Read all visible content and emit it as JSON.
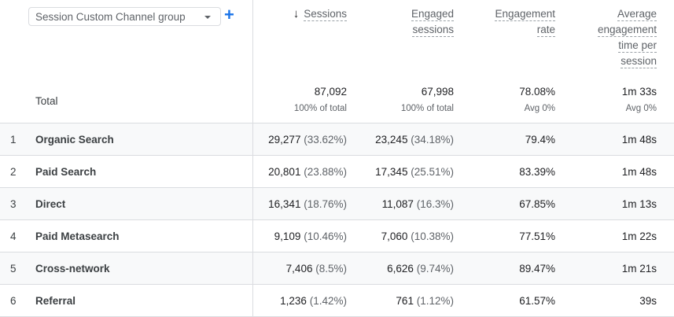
{
  "dimension": {
    "label": "Session Custom Channel group",
    "add_icon": "plus-icon"
  },
  "headers": [
    {
      "lines": [
        "Sessions"
      ],
      "sorted": "descending"
    },
    {
      "lines": [
        "Engaged",
        "sessions"
      ]
    },
    {
      "lines": [
        "Engagement",
        "rate"
      ]
    },
    {
      "lines": [
        "Average",
        "engagement",
        "time per",
        "session"
      ]
    }
  ],
  "total": {
    "label": "Total",
    "values": [
      "87,092",
      "67,998",
      "78.08%",
      "1m 33s"
    ],
    "subs": [
      "100% of total",
      "100% of total",
      "Avg 0%",
      "Avg 0%"
    ]
  },
  "rows": [
    {
      "idx": "1",
      "name": "Organic Search",
      "sessions": "29,277",
      "sessions_pct": "(33.62%)",
      "engaged": "23,245",
      "engaged_pct": "(34.18%)",
      "rate": "79.4%",
      "time": "1m 48s"
    },
    {
      "idx": "2",
      "name": "Paid Search",
      "sessions": "20,801",
      "sessions_pct": "(23.88%)",
      "engaged": "17,345",
      "engaged_pct": "(25.51%)",
      "rate": "83.39%",
      "time": "1m 48s"
    },
    {
      "idx": "3",
      "name": "Direct",
      "sessions": "16,341",
      "sessions_pct": "(18.76%)",
      "engaged": "11,087",
      "engaged_pct": "(16.3%)",
      "rate": "67.85%",
      "time": "1m 13s"
    },
    {
      "idx": "4",
      "name": "Paid Metasearch",
      "sessions": "9,109",
      "sessions_pct": "(10.46%)",
      "engaged": "7,060",
      "engaged_pct": "(10.38%)",
      "rate": "77.51%",
      "time": "1m 22s"
    },
    {
      "idx": "5",
      "name": "Cross-network",
      "sessions": "7,406",
      "sessions_pct": "(8.5%)",
      "engaged": "6,626",
      "engaged_pct": "(9.74%)",
      "rate": "89.47%",
      "time": "1m 21s"
    },
    {
      "idx": "6",
      "name": "Referral",
      "sessions": "1,236",
      "sessions_pct": "(1.42%)",
      "engaged": "761",
      "engaged_pct": "(1.12%)",
      "rate": "61.57%",
      "time": "39s"
    }
  ]
}
